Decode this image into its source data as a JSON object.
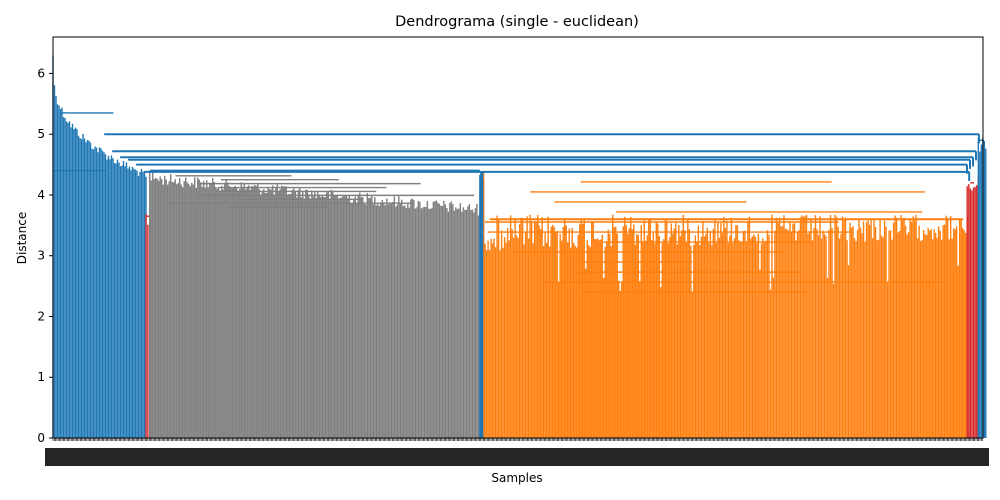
{
  "chart_data": {
    "type": "dendrogram",
    "title": "Dendrograma (single - euclidean)",
    "xlabel": "Samples",
    "ylabel": "Distance",
    "ylim": [
      0,
      6.6
    ],
    "y_ticks": [
      0,
      1,
      2,
      3,
      4,
      5,
      6
    ],
    "x_tick_labels_legible": false,
    "grid": false,
    "clusters": [
      {
        "color": "#1f77b4",
        "leaf_share": 0.1,
        "root_height": 6.3,
        "note_height_range": [
          4.4,
          6.3
        ]
      },
      {
        "color": "#d62728",
        "leaf_share": 0.004,
        "root_height": 3.75
      },
      {
        "color": "#7f7f7f",
        "leaf_share": 0.355,
        "root_height": 4.38,
        "note_height_range": [
          3.8,
          4.38
        ]
      },
      {
        "color": "#1f77b4",
        "leaf_share": 0.004,
        "root_height": 4.38
      },
      {
        "color": "#ff7f0e",
        "leaf_share": 0.52,
        "root_height": 4.38,
        "note_height_range": [
          2.4,
          4.38
        ]
      },
      {
        "color": "#d62728",
        "leaf_share": 0.012,
        "root_height": 4.3
      },
      {
        "color": "#1f77b4",
        "leaf_share": 0.008,
        "root_height": 5.0
      }
    ],
    "top_merges": [
      5.0,
      4.72,
      4.62,
      4.58,
      4.5,
      4.38
    ]
  }
}
